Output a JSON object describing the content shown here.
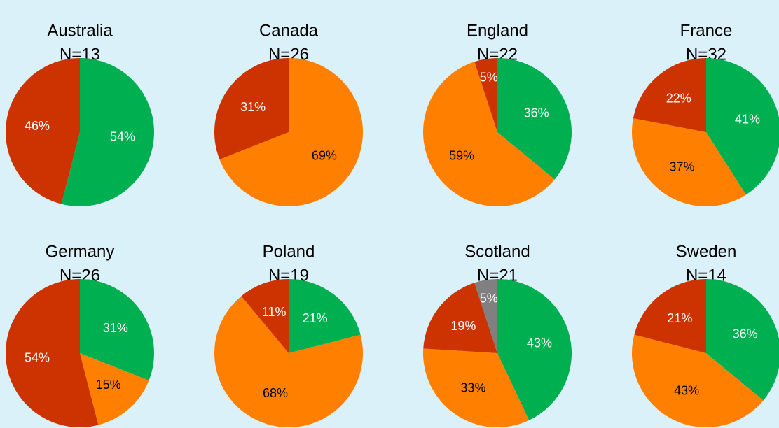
{
  "chart_data": [
    {
      "type": "pie",
      "title": "Australia",
      "subtitle": "N=13",
      "values": [
        54,
        46
      ],
      "value_labels": [
        "54%",
        "46%"
      ],
      "colors": [
        "#00b050",
        "#cc3300"
      ]
    },
    {
      "type": "pie",
      "title": "Canada",
      "subtitle": "N=26",
      "values": [
        69,
        31
      ],
      "value_labels": [
        "69%",
        "31%"
      ],
      "colors": [
        "#ff8000",
        "#cc3300"
      ]
    },
    {
      "type": "pie",
      "title": "England",
      "subtitle": "N=22",
      "values": [
        36,
        59,
        5
      ],
      "value_labels": [
        "36%",
        "59%",
        "5%"
      ],
      "colors": [
        "#00b050",
        "#ff8000",
        "#cc3300"
      ]
    },
    {
      "type": "pie",
      "title": "France",
      "subtitle": "N=32",
      "values": [
        41,
        37,
        22
      ],
      "value_labels": [
        "41%",
        "37%",
        "22%"
      ],
      "colors": [
        "#00b050",
        "#ff8000",
        "#cc3300"
      ]
    },
    {
      "type": "pie",
      "title": "Germany",
      "subtitle": "N=26",
      "values": [
        31,
        15,
        54
      ],
      "value_labels": [
        "31%",
        "15%",
        "54%"
      ],
      "colors": [
        "#00b050",
        "#ff8000",
        "#cc3300"
      ]
    },
    {
      "type": "pie",
      "title": "Poland",
      "subtitle": "N=19",
      "values": [
        21,
        68,
        11
      ],
      "value_labels": [
        "21%",
        "68%",
        "11%"
      ],
      "colors": [
        "#00b050",
        "#ff8000",
        "#cc3300"
      ]
    },
    {
      "type": "pie",
      "title": "Scotland",
      "subtitle": "N=21",
      "values": [
        43,
        33,
        19,
        5
      ],
      "value_labels": [
        "43%",
        "33%",
        "19%",
        "5%"
      ],
      "colors": [
        "#00b050",
        "#ff8000",
        "#cc3300",
        "#808080"
      ]
    },
    {
      "type": "pie",
      "title": "Sweden",
      "subtitle": "N=14",
      "values": [
        36,
        43,
        21
      ],
      "value_labels": [
        "36%",
        "43%",
        "21%"
      ],
      "colors": [
        "#00b050",
        "#ff8000",
        "#cc3300"
      ]
    }
  ]
}
